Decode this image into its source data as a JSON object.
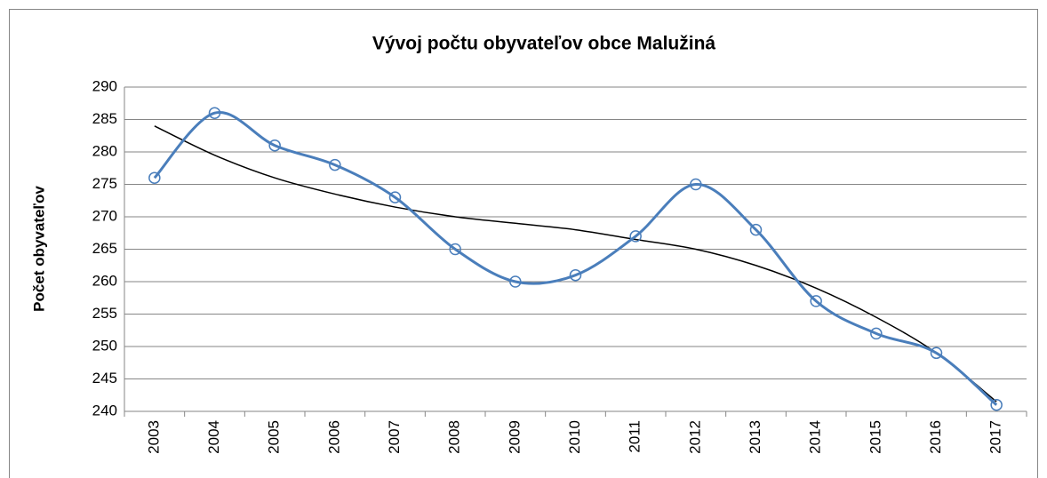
{
  "chart_data": {
    "type": "line",
    "title": "Vývoj počtu obyvateľov obce Malužiná",
    "y_label": "Počet obyvateľov",
    "categories": [
      "2003",
      "2004",
      "2005",
      "2006",
      "2007",
      "2008",
      "2009",
      "2010",
      "2011",
      "2012",
      "2013",
      "2014",
      "2015",
      "2016",
      "2017"
    ],
    "series": [
      {
        "color": "#4a7ebb",
        "values": [
          276,
          286,
          281,
          278,
          273,
          265,
          260,
          261,
          267,
          275,
          268,
          257,
          252,
          249,
          241
        ],
        "markers": true,
        "smooth": true
      },
      {
        "color": "#000000",
        "values": [
          284,
          279.5,
          276,
          273.5,
          271.5,
          270,
          269,
          268,
          266.5,
          265,
          262.5,
          259,
          254.5,
          249,
          241.5
        ],
        "markers": false,
        "smooth": true
      }
    ],
    "ylim": [
      240,
      290
    ],
    "yticks": [
      240,
      245,
      250,
      255,
      260,
      265,
      270,
      275,
      280,
      285,
      290
    ],
    "grid": true
  }
}
